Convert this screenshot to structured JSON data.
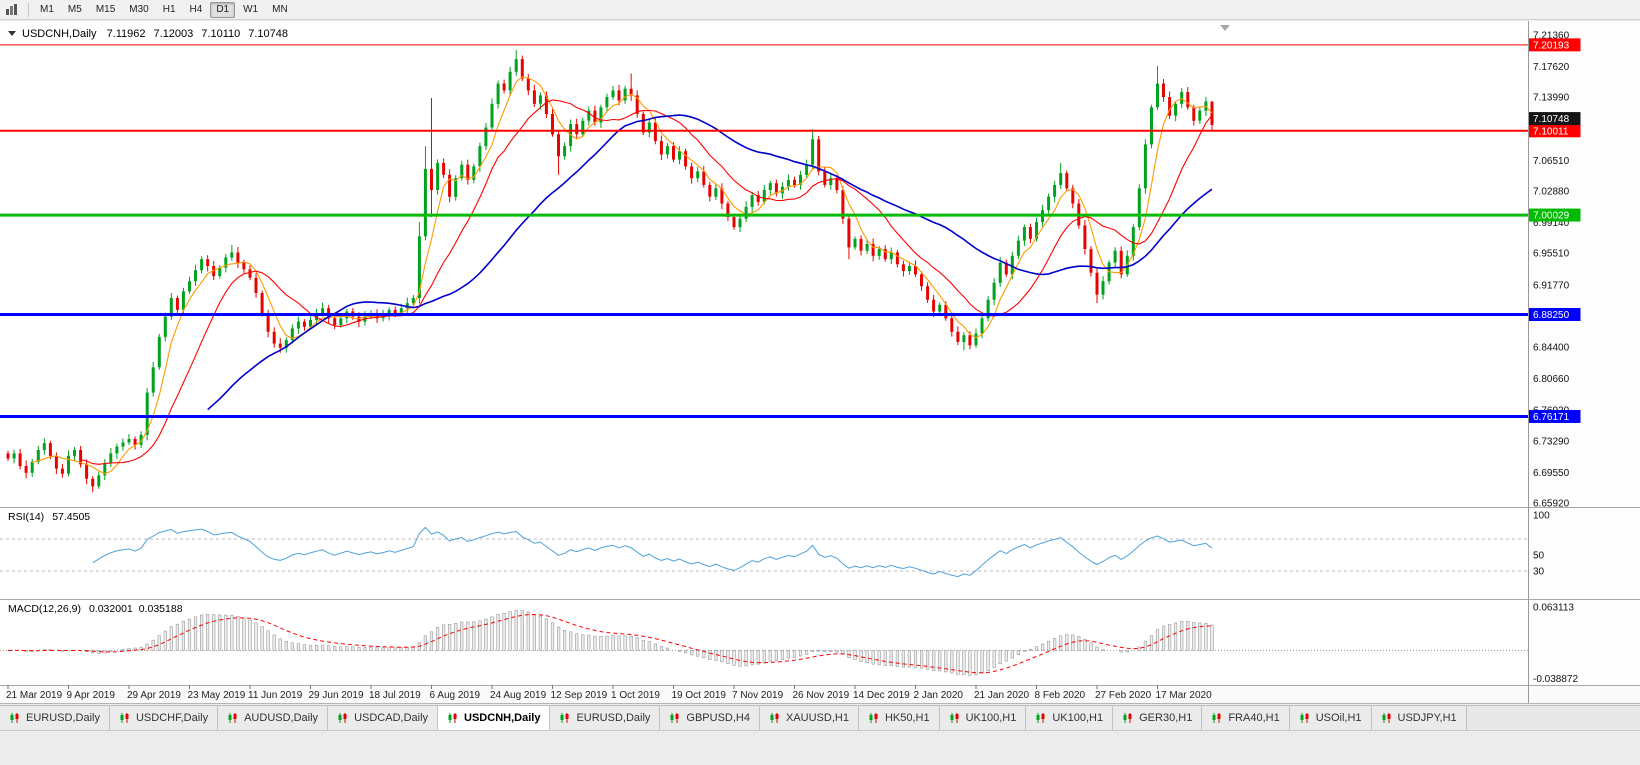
{
  "toolbar": {
    "timeframes": [
      "M1",
      "M5",
      "M15",
      "M30",
      "H1",
      "H4",
      "D1",
      "W1",
      "MN"
    ],
    "active": "D1"
  },
  "chart_header": {
    "symbol": "USDCNH,Daily",
    "open": "7.11962",
    "high": "7.12003",
    "low": "7.10110",
    "close": "7.10748"
  },
  "tab_bar": {
    "tabs": [
      {
        "label": "EURUSD,Daily",
        "active": false
      },
      {
        "label": "USDCHF,Daily",
        "active": false
      },
      {
        "label": "AUDUSD,Daily",
        "active": false
      },
      {
        "label": "USDCAD,Daily",
        "active": false
      },
      {
        "label": "USDCNH,Daily",
        "active": true
      },
      {
        "label": "EURUSD,Daily",
        "active": false
      },
      {
        "label": "GBPUSD,H4",
        "active": false
      },
      {
        "label": "XAUUSD,H1",
        "active": false
      },
      {
        "label": "HK50,H1",
        "active": false
      },
      {
        "label": "UK100,H1",
        "active": false
      },
      {
        "label": "UK100,H1",
        "active": false
      },
      {
        "label": "GER30,H1",
        "active": false
      },
      {
        "label": "FRA40,H1",
        "active": false
      },
      {
        "label": "USOil,H1",
        "active": false
      },
      {
        "label": "USDJPY,H1",
        "active": false
      }
    ]
  },
  "chart_data": {
    "type": "candlestick",
    "title": "USDCNH,Daily",
    "ylim": [
      6.6592,
      7.2136
    ],
    "y_ticks": [
      "7.21360",
      "7.17620",
      "7.13990",
      "7.10250",
      "7.06510",
      "7.02880",
      "6.99140",
      "6.95510",
      "6.91770",
      "6.88140",
      "6.84400",
      "6.80660",
      "6.76920",
      "6.73290",
      "6.69550",
      "6.65920"
    ],
    "x_labels": [
      "21 Mar 2019",
      "9 Apr 2019",
      "29 Apr 2019",
      "23 May 2019",
      "11 Jun 2019",
      "29 Jun 2019",
      "18 Jul 2019",
      "6 Aug 2019",
      "24 Aug 2019",
      "12 Sep 2019",
      "1 Oct 2019",
      "19 Oct 2019",
      "7 Nov 2019",
      "26 Nov 2019",
      "14 Dec 2019",
      "2 Jan 2020",
      "21 Jan 2020",
      "8 Feb 2020",
      "27 Feb 2020",
      "17 Mar 2020"
    ],
    "label_interval": 10,
    "closes": [
      6.712,
      6.718,
      6.703,
      6.695,
      6.708,
      6.722,
      6.73,
      6.715,
      6.7,
      6.694,
      6.715,
      6.722,
      6.705,
      6.688,
      6.679,
      6.692,
      6.706,
      6.718,
      6.726,
      6.731,
      6.735,
      6.728,
      6.74,
      6.79,
      6.82,
      6.856,
      6.88,
      6.902,
      6.888,
      6.91,
      6.922,
      6.935,
      6.948,
      6.94,
      6.928,
      6.938,
      6.95,
      6.956,
      6.944,
      6.936,
      6.926,
      6.908,
      6.884,
      6.862,
      6.848,
      6.843,
      6.852,
      6.866,
      6.874,
      6.868,
      6.876,
      6.884,
      6.89,
      6.878,
      6.87,
      6.878,
      6.886,
      6.88,
      6.874,
      6.88,
      6.884,
      6.878,
      6.882,
      6.888,
      6.884,
      6.89,
      6.896,
      6.902,
      6.975,
      7.055,
      7.03,
      7.062,
      7.048,
      7.022,
      7.044,
      7.06,
      7.042,
      7.058,
      7.082,
      7.104,
      7.132,
      7.156,
      7.148,
      7.17,
      7.185,
      7.162,
      7.148,
      7.132,
      7.142,
      7.12,
      7.096,
      7.07,
      7.082,
      7.108,
      7.096,
      7.112,
      7.124,
      7.11,
      7.128,
      7.14,
      7.148,
      7.136,
      7.15,
      7.142,
      7.12,
      7.098,
      7.11,
      7.088,
      7.072,
      7.082,
      7.066,
      7.076,
      7.058,
      7.044,
      7.052,
      7.036,
      7.022,
      7.032,
      7.014,
      6.998,
      6.986,
      6.996,
      7.01,
      7.024,
      7.016,
      7.03,
      7.038,
      7.026,
      7.034,
      7.042,
      7.036,
      7.048,
      7.06,
      7.09,
      7.052,
      7.036,
      7.044,
      7.03,
      6.996,
      6.962,
      6.972,
      6.958,
      6.966,
      6.952,
      6.96,
      6.948,
      6.956,
      6.942,
      6.934,
      6.94,
      6.93,
      6.916,
      6.9,
      6.886,
      6.894,
      6.878,
      6.862,
      6.85,
      6.858,
      6.846,
      6.86,
      6.878,
      6.9,
      6.92,
      6.944,
      6.93,
      6.952,
      6.97,
      6.986,
      6.972,
      6.992,
      7.006,
      7.022,
      7.036,
      7.05,
      7.032,
      7.014,
      6.988,
      6.96,
      6.932,
      6.906,
      6.922,
      6.944,
      6.958,
      6.93,
      6.952,
      6.986,
      7.032,
      7.084,
      7.128,
      7.156,
      7.14,
      7.118,
      7.132,
      7.146,
      7.128,
      7.112,
      7.124,
      7.135,
      7.107
    ],
    "wick_overrides": {
      "14": {
        "low": 6.672
      },
      "37": {
        "high": 6.965
      },
      "45": {
        "low": 6.837
      },
      "68": {
        "high": 6.992
      },
      "69": {
        "high": 7.082
      },
      "70": {
        "high": 7.139,
        "low": 6.998
      },
      "84": {
        "high": 7.196
      },
      "91": {
        "low": 7.048
      },
      "103": {
        "high": 7.168
      },
      "133": {
        "high": 7.102
      },
      "139": {
        "low": 6.948
      },
      "158": {
        "low": 6.84
      },
      "174": {
        "high": 7.062
      },
      "180": {
        "low": 6.896
      },
      "190": {
        "high": 7.177
      },
      "199": {
        "high": 7.12,
        "low": 7.101
      }
    },
    "colors": {
      "up": "#00a21f",
      "down": "#e60400"
    },
    "moving_averages": [
      {
        "period": 5,
        "color": "#ff9a00"
      },
      {
        "period": 13,
        "color": "#ff0000"
      },
      {
        "period": 34,
        "color": "#0000cc"
      }
    ],
    "hlines": [
      {
        "price": 7.20193,
        "label": "7.20193",
        "color": "#ff0000",
        "width": 1
      },
      {
        "price": 7.10011,
        "label": "7.10011",
        "color": "#ff0000",
        "width": 2
      },
      {
        "price": 7.00029,
        "label": "7.00029",
        "color": "#00bb00",
        "width": 3
      },
      {
        "price": 6.8825,
        "label": "6.88250",
        "color": "#0000ff",
        "width": 3
      },
      {
        "price": 6.76171,
        "label": "6.76171",
        "color": "#0000ff",
        "width": 3
      }
    ],
    "current_price": {
      "value": 7.10748,
      "label": "7.10748",
      "tag_color": "#151515"
    },
    "indicators": {
      "rsi": {
        "name": "RSI(14)",
        "value": "57.4505",
        "period": 14,
        "levels": [
          70,
          30
        ],
        "axis_labels": [
          100,
          50,
          30
        ],
        "color": "#4da3d9",
        "range": [
          0,
          100
        ]
      },
      "macd": {
        "name": "MACD(12,26,9)",
        "value_main": "0.032001",
        "value_signal": "0.035188",
        "fast": 12,
        "slow": 26,
        "signal": 9,
        "axis_labels": [
          "0.063113",
          "-0.038872"
        ],
        "axis_max": 0.063113,
        "axis_min": -0.038872,
        "hist_fill": "#ededed",
        "hist_outline": "#9a9a9a",
        "signal_color": "#ff0000"
      }
    }
  }
}
